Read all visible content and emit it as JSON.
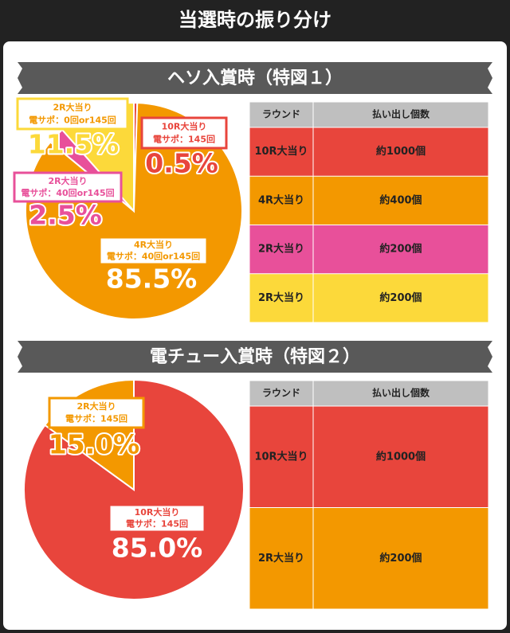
{
  "title": "当選時の振り分け",
  "chart_data": [
    {
      "type": "pie",
      "title": "ヘソ入賞時（特図１）",
      "categories": [
        "10R大当り",
        "4R大当り",
        "2R大当り",
        "2R大当り"
      ],
      "sublabels": [
        "電サポ：145回",
        "電サポ：40回or145回",
        "電サポ：40回or145回",
        "電サポ：0回or145回"
      ],
      "values": [
        0.5,
        85.5,
        2.5,
        11.5
      ],
      "value_labels": [
        "0.5%",
        "85.5%",
        "2.5%",
        "11.5%"
      ],
      "colors": [
        "#e8453c",
        "#f39800",
        "#e8509a",
        "#fcd93a"
      ]
    },
    {
      "type": "pie",
      "title": "電チュー入賞時（特図２）",
      "categories": [
        "10R大当り",
        "2R大当り"
      ],
      "sublabels": [
        "電サポ：145回",
        "電サポ：145回"
      ],
      "values": [
        85.0,
        15.0
      ],
      "value_labels": [
        "85.0%",
        "15.0%"
      ],
      "colors": [
        "#e8453c",
        "#f39800"
      ]
    }
  ],
  "tables": [
    {
      "header": [
        "ラウンド",
        "払い出し個数"
      ],
      "rows": [
        [
          "10R大当り",
          "約1000個"
        ],
        [
          "4R大当り",
          "約400個"
        ],
        [
          "2R大当り",
          "約200個"
        ],
        [
          "2R大当り",
          "約200個"
        ]
      ],
      "row_colors": [
        "#e8453c",
        "#f39800",
        "#e8509a",
        "#fcd93a"
      ]
    },
    {
      "header": [
        "ラウンド",
        "払い出し個数"
      ],
      "rows": [
        [
          "10R大当り",
          "約1000個"
        ],
        [
          "2R大当り",
          "約200個"
        ]
      ],
      "row_colors": [
        "#e8453c",
        "#f39800"
      ]
    }
  ]
}
